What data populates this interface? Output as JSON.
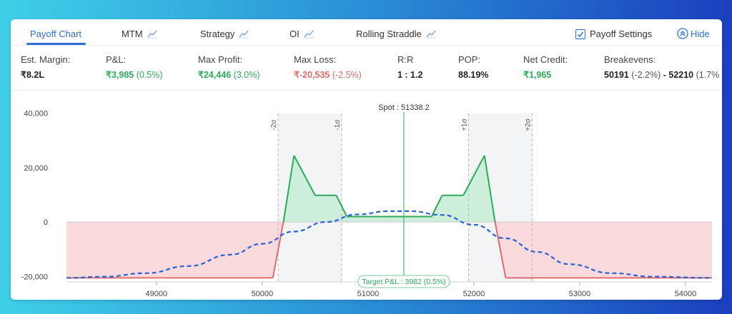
{
  "tabs": [
    {
      "label": "Payoff Chart",
      "active": true,
      "icon": null
    },
    {
      "label": "MTM",
      "active": false,
      "icon": "trend-chart-icon"
    },
    {
      "label": "Strategy",
      "active": false,
      "icon": "trend-chart-icon"
    },
    {
      "label": "OI",
      "active": false,
      "icon": "trend-chart-icon"
    },
    {
      "label": "Rolling Straddle",
      "active": false,
      "icon": "trend-chart-icon"
    }
  ],
  "settings": {
    "label": "Payoff Settings",
    "checked": true
  },
  "hide": {
    "label": "Hide"
  },
  "stats": {
    "margin": {
      "label": "Est. Margin:",
      "value": "₹8.2L"
    },
    "pnl": {
      "label": "P&L:",
      "value": "₹3,985",
      "pct": "(0.5%)"
    },
    "max_profit": {
      "label": "Max Profit:",
      "value": "₹24,446",
      "pct": "(3.0%)"
    },
    "max_loss": {
      "label": "Max Loss:",
      "value": "₹-20,535",
      "pct": "(-2.5%)"
    },
    "rr": {
      "label": "R:R",
      "value": "1 : 1.2"
    },
    "pop": {
      "label": "POP:",
      "value": "88.19%"
    },
    "net_credit": {
      "label": "Net Credit:",
      "value": "₹1,965"
    },
    "breakevens": {
      "label": "Breakevens:",
      "be1": "50191",
      "be1_pct": "(-2.2%)",
      "sep": "-",
      "be2": "52210",
      "be2_pct": "(1.7%"
    }
  },
  "colors": {
    "accent": "#2e6fd6",
    "profit": "#2eaa5a",
    "loss": "#e06c6c",
    "target": "#2a62d8"
  },
  "chart_data": {
    "type": "line",
    "x_ticks": [
      49000,
      50000,
      51000,
      52000,
      53000,
      54000
    ],
    "y_ticks": [
      40000,
      20000,
      0,
      -20000
    ],
    "y_tick_labels": [
      "40,000",
      "20,000",
      "0",
      "-20,000"
    ],
    "x_tick_labels": [
      "49000",
      "50000",
      "51000",
      "52000",
      "53000",
      "54000"
    ],
    "xlim": [
      48150,
      54250
    ],
    "ylim": [
      -22000,
      42000
    ],
    "spot": {
      "value": 51338.2,
      "label": "Spot : 51338.2"
    },
    "sigma_lines": [
      {
        "x": 50150,
        "label": "-2σ"
      },
      {
        "x": 50750,
        "label": "-1σ"
      },
      {
        "x": 51950,
        "label": "+1σ"
      },
      {
        "x": 52550,
        "label": "+2σ"
      }
    ],
    "target_label": "Target P&L : 3982 (0.5%)",
    "series": [
      {
        "type": "expiry",
        "x": [
          48150,
          50100,
          50200,
          50300,
          50500,
          50700,
          50800,
          51600,
          51700,
          51900,
          52100,
          52200,
          52300,
          54250
        ],
        "y": [
          -20535,
          -20535,
          0,
          24446,
          9800,
          9800,
          2000,
          2000,
          9800,
          9800,
          24446,
          0,
          -20535,
          -20535
        ]
      },
      {
        "type": "target",
        "x": [
          48150,
          48500,
          48900,
          49300,
          49700,
          50000,
          50300,
          50600,
          50900,
          51200,
          51400,
          51700,
          52000,
          52300,
          52600,
          52900,
          53300,
          53700,
          54250
        ],
        "y": [
          -20535,
          -20100,
          -18800,
          -16200,
          -12000,
          -8000,
          -3500,
          0,
          2800,
          4000,
          4000,
          2600,
          -1000,
          -6000,
          -11000,
          -15500,
          -18800,
          -20100,
          -20535
        ]
      }
    ]
  }
}
